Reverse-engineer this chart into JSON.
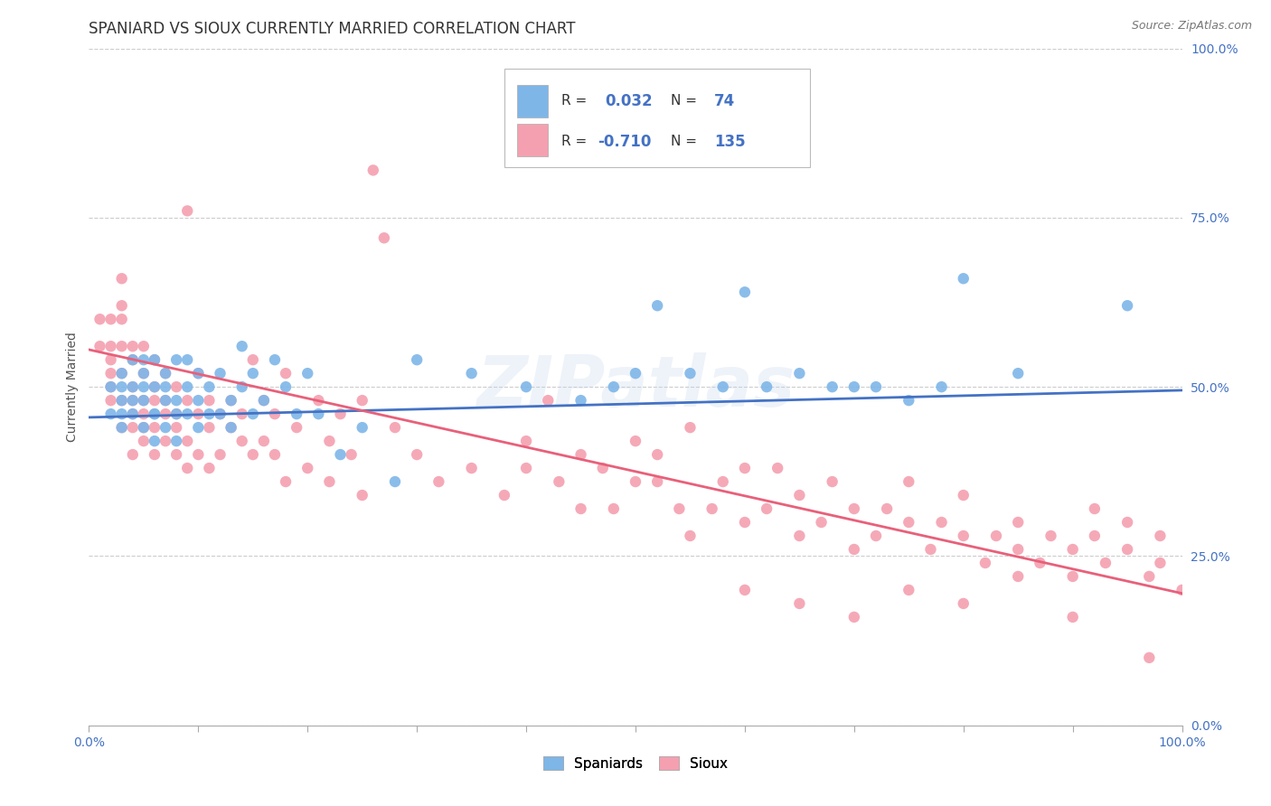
{
  "title": "SPANIARD VS SIOUX CURRENTLY MARRIED CORRELATION CHART",
  "source_text": "Source: ZipAtlas.com",
  "ylabel": "Currently Married",
  "watermark": "ZIPatlas",
  "ytick_labels": [
    "0.0%",
    "25.0%",
    "50.0%",
    "75.0%",
    "100.0%"
  ],
  "ytick_values": [
    0.0,
    0.25,
    0.5,
    0.75,
    1.0
  ],
  "xlim": [
    0.0,
    1.0
  ],
  "ylim": [
    0.0,
    1.0
  ],
  "spaniard_color": "#7EB6E8",
  "sioux_color": "#F4A0B0",
  "spaniard_line_color": "#4472C4",
  "sioux_line_color": "#E8607A",
  "R_spaniard": 0.032,
  "N_spaniard": 74,
  "R_sioux": -0.71,
  "N_sioux": 135,
  "grid_color": "#CCCCCC",
  "background_color": "#FFFFFF",
  "title_fontsize": 12,
  "axis_label_fontsize": 10,
  "tick_fontsize": 10,
  "legend_fontsize": 11,
  "spaniard_points": [
    [
      0.02,
      0.46
    ],
    [
      0.02,
      0.5
    ],
    [
      0.03,
      0.48
    ],
    [
      0.03,
      0.52
    ],
    [
      0.03,
      0.46
    ],
    [
      0.03,
      0.5
    ],
    [
      0.03,
      0.44
    ],
    [
      0.04,
      0.5
    ],
    [
      0.04,
      0.46
    ],
    [
      0.04,
      0.54
    ],
    [
      0.04,
      0.48
    ],
    [
      0.05,
      0.52
    ],
    [
      0.05,
      0.48
    ],
    [
      0.05,
      0.44
    ],
    [
      0.05,
      0.54
    ],
    [
      0.05,
      0.5
    ],
    [
      0.06,
      0.46
    ],
    [
      0.06,
      0.5
    ],
    [
      0.06,
      0.42
    ],
    [
      0.06,
      0.54
    ],
    [
      0.06,
      0.46
    ],
    [
      0.07,
      0.48
    ],
    [
      0.07,
      0.52
    ],
    [
      0.07,
      0.44
    ],
    [
      0.07,
      0.5
    ],
    [
      0.08,
      0.46
    ],
    [
      0.08,
      0.54
    ],
    [
      0.08,
      0.42
    ],
    [
      0.08,
      0.48
    ],
    [
      0.09,
      0.5
    ],
    [
      0.09,
      0.46
    ],
    [
      0.09,
      0.54
    ],
    [
      0.1,
      0.48
    ],
    [
      0.1,
      0.44
    ],
    [
      0.1,
      0.52
    ],
    [
      0.11,
      0.46
    ],
    [
      0.11,
      0.5
    ],
    [
      0.12,
      0.46
    ],
    [
      0.12,
      0.52
    ],
    [
      0.13,
      0.48
    ],
    [
      0.13,
      0.44
    ],
    [
      0.14,
      0.56
    ],
    [
      0.14,
      0.5
    ],
    [
      0.15,
      0.46
    ],
    [
      0.15,
      0.52
    ],
    [
      0.16,
      0.48
    ],
    [
      0.17,
      0.54
    ],
    [
      0.18,
      0.5
    ],
    [
      0.19,
      0.46
    ],
    [
      0.2,
      0.52
    ],
    [
      0.21,
      0.46
    ],
    [
      0.23,
      0.4
    ],
    [
      0.25,
      0.44
    ],
    [
      0.28,
      0.36
    ],
    [
      0.3,
      0.54
    ],
    [
      0.35,
      0.52
    ],
    [
      0.4,
      0.5
    ],
    [
      0.45,
      0.48
    ],
    [
      0.48,
      0.5
    ],
    [
      0.5,
      0.52
    ],
    [
      0.52,
      0.62
    ],
    [
      0.55,
      0.52
    ],
    [
      0.58,
      0.5
    ],
    [
      0.6,
      0.64
    ],
    [
      0.62,
      0.5
    ],
    [
      0.65,
      0.52
    ],
    [
      0.68,
      0.5
    ],
    [
      0.7,
      0.5
    ],
    [
      0.72,
      0.5
    ],
    [
      0.75,
      0.48
    ],
    [
      0.78,
      0.5
    ],
    [
      0.8,
      0.66
    ],
    [
      0.85,
      0.52
    ],
    [
      0.95,
      0.62
    ]
  ],
  "sioux_points": [
    [
      0.01,
      0.56
    ],
    [
      0.01,
      0.6
    ],
    [
      0.02,
      0.52
    ],
    [
      0.02,
      0.56
    ],
    [
      0.02,
      0.6
    ],
    [
      0.02,
      0.5
    ],
    [
      0.02,
      0.54
    ],
    [
      0.02,
      0.48
    ],
    [
      0.03,
      0.62
    ],
    [
      0.03,
      0.56
    ],
    [
      0.03,
      0.52
    ],
    [
      0.03,
      0.48
    ],
    [
      0.03,
      0.44
    ],
    [
      0.03,
      0.6
    ],
    [
      0.03,
      0.66
    ],
    [
      0.04,
      0.54
    ],
    [
      0.04,
      0.5
    ],
    [
      0.04,
      0.56
    ],
    [
      0.04,
      0.44
    ],
    [
      0.04,
      0.46
    ],
    [
      0.04,
      0.4
    ],
    [
      0.04,
      0.48
    ],
    [
      0.05,
      0.52
    ],
    [
      0.05,
      0.48
    ],
    [
      0.05,
      0.44
    ],
    [
      0.05,
      0.56
    ],
    [
      0.05,
      0.42
    ],
    [
      0.05,
      0.46
    ],
    [
      0.06,
      0.5
    ],
    [
      0.06,
      0.54
    ],
    [
      0.06,
      0.48
    ],
    [
      0.06,
      0.44
    ],
    [
      0.06,
      0.4
    ],
    [
      0.07,
      0.52
    ],
    [
      0.07,
      0.46
    ],
    [
      0.07,
      0.42
    ],
    [
      0.07,
      0.48
    ],
    [
      0.08,
      0.5
    ],
    [
      0.08,
      0.44
    ],
    [
      0.08,
      0.4
    ],
    [
      0.08,
      0.46
    ],
    [
      0.09,
      0.48
    ],
    [
      0.09,
      0.42
    ],
    [
      0.09,
      0.38
    ],
    [
      0.09,
      0.76
    ],
    [
      0.1,
      0.46
    ],
    [
      0.1,
      0.4
    ],
    [
      0.1,
      0.52
    ],
    [
      0.11,
      0.48
    ],
    [
      0.11,
      0.44
    ],
    [
      0.11,
      0.38
    ],
    [
      0.12,
      0.46
    ],
    [
      0.12,
      0.4
    ],
    [
      0.13,
      0.48
    ],
    [
      0.13,
      0.44
    ],
    [
      0.14,
      0.46
    ],
    [
      0.14,
      0.42
    ],
    [
      0.15,
      0.54
    ],
    [
      0.15,
      0.4
    ],
    [
      0.16,
      0.48
    ],
    [
      0.16,
      0.42
    ],
    [
      0.17,
      0.46
    ],
    [
      0.17,
      0.4
    ],
    [
      0.18,
      0.52
    ],
    [
      0.18,
      0.36
    ],
    [
      0.19,
      0.44
    ],
    [
      0.2,
      0.38
    ],
    [
      0.21,
      0.48
    ],
    [
      0.22,
      0.42
    ],
    [
      0.22,
      0.36
    ],
    [
      0.23,
      0.46
    ],
    [
      0.24,
      0.4
    ],
    [
      0.25,
      0.48
    ],
    [
      0.25,
      0.34
    ],
    [
      0.26,
      0.82
    ],
    [
      0.27,
      0.72
    ],
    [
      0.28,
      0.44
    ],
    [
      0.3,
      0.4
    ],
    [
      0.32,
      0.36
    ],
    [
      0.35,
      0.38
    ],
    [
      0.38,
      0.34
    ],
    [
      0.4,
      0.42
    ],
    [
      0.4,
      0.38
    ],
    [
      0.42,
      0.48
    ],
    [
      0.43,
      0.36
    ],
    [
      0.45,
      0.4
    ],
    [
      0.45,
      0.32
    ],
    [
      0.47,
      0.38
    ],
    [
      0.48,
      0.32
    ],
    [
      0.5,
      0.36
    ],
    [
      0.5,
      0.42
    ],
    [
      0.52,
      0.36
    ],
    [
      0.52,
      0.4
    ],
    [
      0.54,
      0.32
    ],
    [
      0.55,
      0.44
    ],
    [
      0.55,
      0.28
    ],
    [
      0.57,
      0.32
    ],
    [
      0.58,
      0.36
    ],
    [
      0.6,
      0.38
    ],
    [
      0.6,
      0.3
    ],
    [
      0.62,
      0.32
    ],
    [
      0.63,
      0.38
    ],
    [
      0.65,
      0.34
    ],
    [
      0.65,
      0.28
    ],
    [
      0.67,
      0.3
    ],
    [
      0.68,
      0.36
    ],
    [
      0.7,
      0.32
    ],
    [
      0.7,
      0.26
    ],
    [
      0.72,
      0.28
    ],
    [
      0.73,
      0.32
    ],
    [
      0.75,
      0.3
    ],
    [
      0.75,
      0.36
    ],
    [
      0.77,
      0.26
    ],
    [
      0.78,
      0.3
    ],
    [
      0.8,
      0.28
    ],
    [
      0.8,
      0.34
    ],
    [
      0.82,
      0.24
    ],
    [
      0.83,
      0.28
    ],
    [
      0.85,
      0.3
    ],
    [
      0.85,
      0.26
    ],
    [
      0.87,
      0.24
    ],
    [
      0.88,
      0.28
    ],
    [
      0.9,
      0.26
    ],
    [
      0.9,
      0.22
    ],
    [
      0.92,
      0.32
    ],
    [
      0.92,
      0.28
    ],
    [
      0.93,
      0.24
    ],
    [
      0.95,
      0.3
    ],
    [
      0.95,
      0.26
    ],
    [
      0.97,
      0.22
    ],
    [
      0.97,
      0.1
    ],
    [
      0.98,
      0.24
    ],
    [
      0.98,
      0.28
    ],
    [
      1.0,
      0.2
    ],
    [
      0.6,
      0.2
    ],
    [
      0.65,
      0.18
    ],
    [
      0.7,
      0.16
    ],
    [
      0.75,
      0.2
    ],
    [
      0.8,
      0.18
    ],
    [
      0.85,
      0.22
    ],
    [
      0.9,
      0.16
    ]
  ],
  "spaniard_trend": [
    0.0,
    1.0
  ],
  "spaniard_trend_y": [
    0.455,
    0.495
  ],
  "sioux_trend": [
    0.0,
    1.0
  ],
  "sioux_trend_y": [
    0.555,
    0.195
  ]
}
